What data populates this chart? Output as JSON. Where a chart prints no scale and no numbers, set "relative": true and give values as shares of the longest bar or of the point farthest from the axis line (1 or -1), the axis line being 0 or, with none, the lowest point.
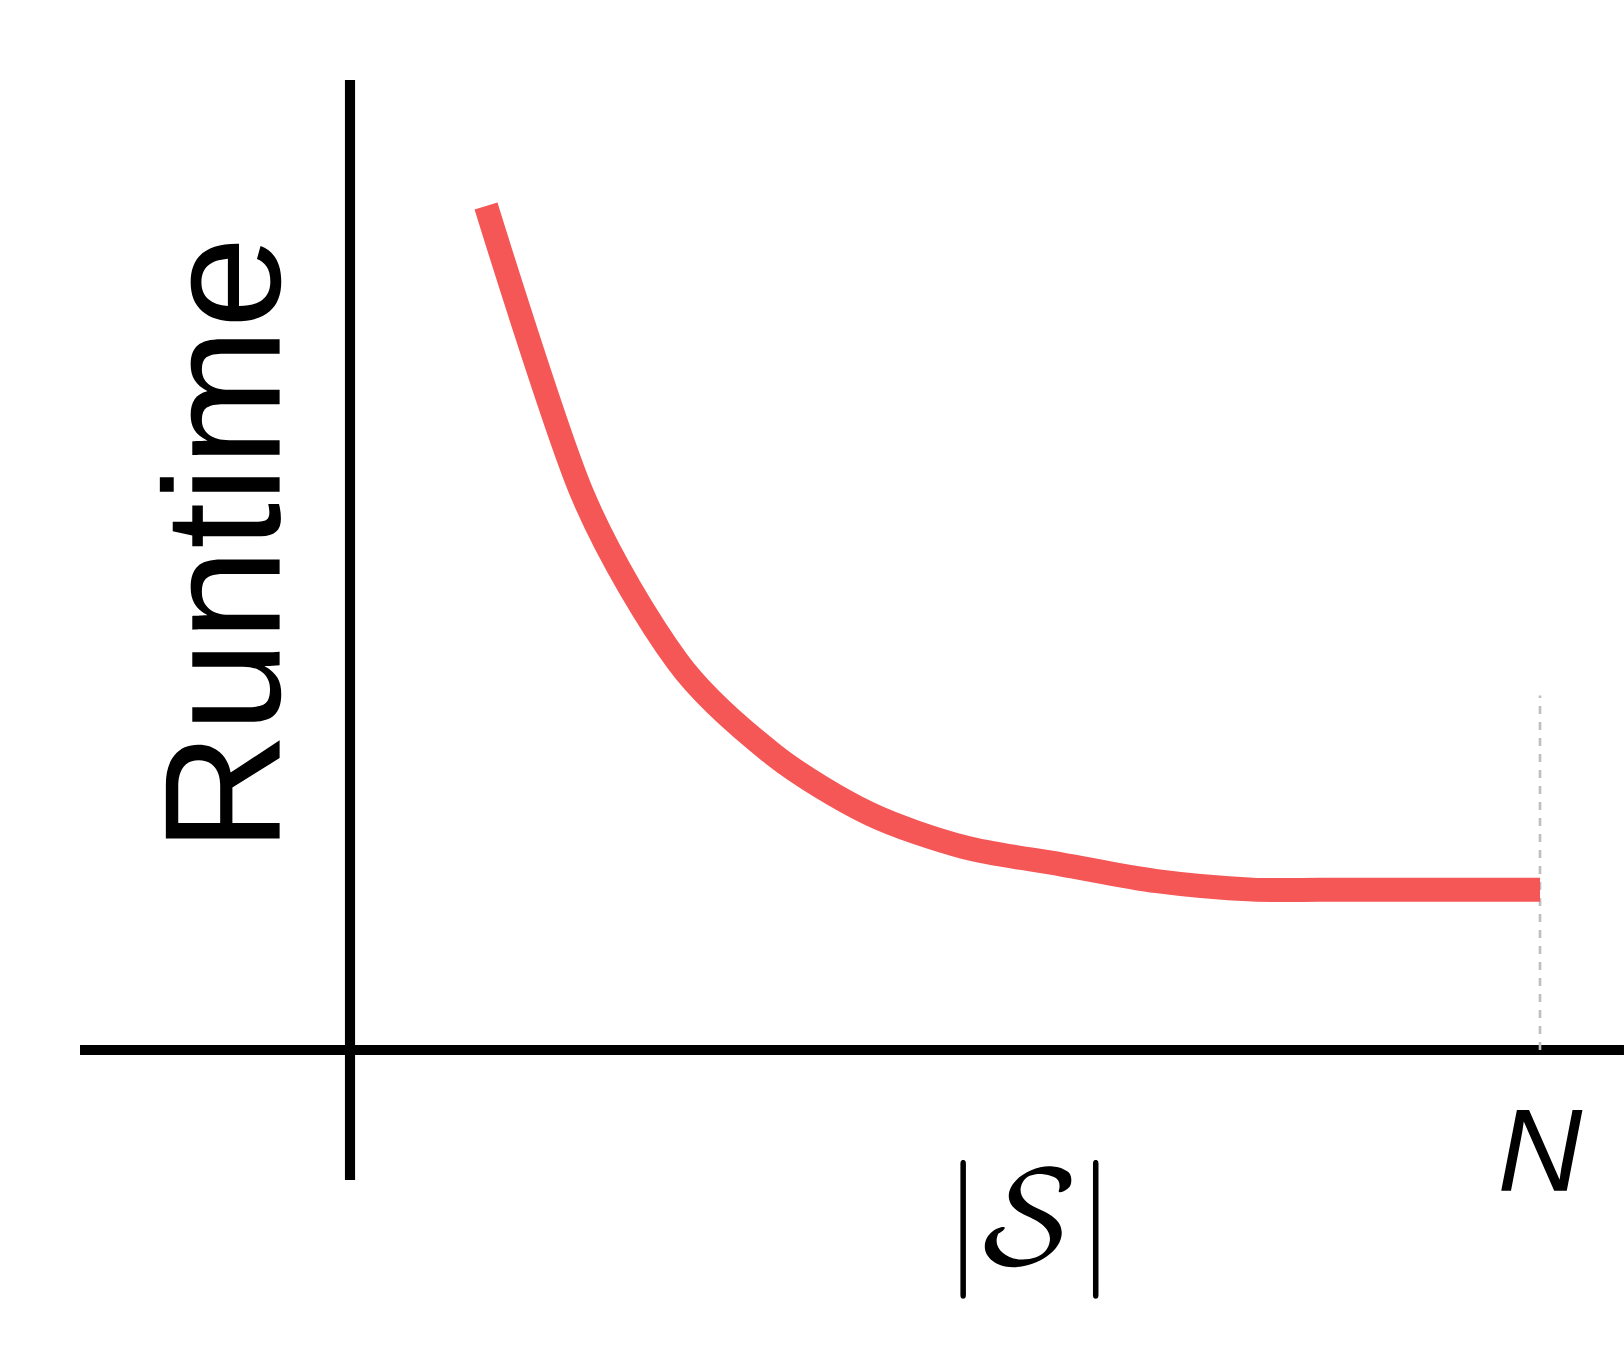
{
  "chart_data": {
    "type": "line",
    "xlabel": "|\\mathcal{S}|",
    "ylabel": "Runtime",
    "categories": [
      null,
      null,
      null,
      null,
      null,
      null,
      null,
      null,
      null,
      null,
      null,
      null
    ],
    "values": [
      1.0,
      0.66,
      0.46,
      0.35,
      0.28,
      0.24,
      0.22,
      0.2,
      0.19,
      0.19,
      0.19,
      0.19
    ],
    "relative": true,
    "color": "#f55656",
    "annotations": [
      "N"
    ]
  }
}
